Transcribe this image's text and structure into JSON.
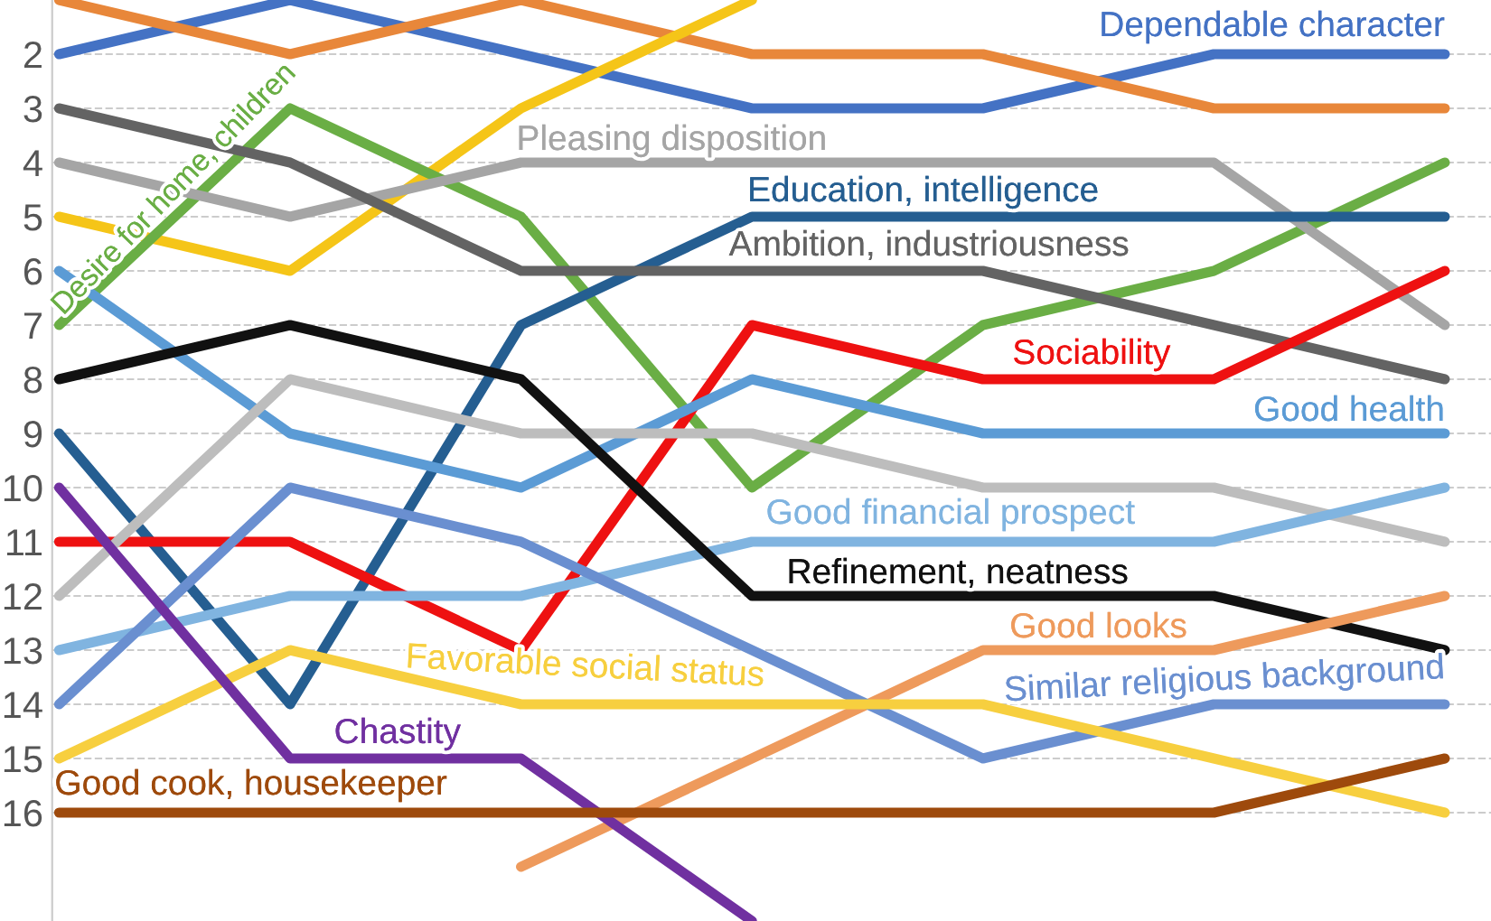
{
  "chart_data": {
    "type": "line",
    "categories": [
      null,
      null,
      null,
      null,
      null,
      null,
      null
    ],
    "ylim": [
      18,
      1
    ],
    "yticks": [
      2,
      3,
      4,
      5,
      6,
      7,
      8,
      9,
      10,
      11,
      12,
      13,
      14,
      15,
      16
    ],
    "grid": "y",
    "tick_labels": "y",
    "legend": false,
    "marker": "none",
    "line_style": "solid",
    "series": [
      {
        "name": "Dependable character",
        "color": "#4472c4",
        "values": [
          2,
          1,
          2,
          3,
          3,
          2,
          2
        ]
      },
      {
        "color": "#e8873a",
        "values": [
          1,
          2,
          1,
          2,
          2,
          3,
          3
        ]
      },
      {
        "color": "#f5c518",
        "values": [
          5,
          6,
          3,
          1,
          null,
          null,
          null
        ]
      },
      {
        "name": "Desire for home, children",
        "color": "#6aae45",
        "values": [
          7,
          3,
          5,
          10,
          7,
          6,
          4
        ]
      },
      {
        "name": "Pleasing disposition",
        "color": "#a5a5a5",
        "values": [
          4,
          5,
          4,
          4,
          4,
          4,
          7
        ]
      },
      {
        "name": "Education, intelligence",
        "color": "#255e91",
        "values": [
          9,
          14,
          7,
          5,
          5,
          5,
          5
        ]
      },
      {
        "name": "Ambition, industriousness",
        "color": "#636363",
        "values": [
          3,
          4,
          6,
          6,
          6,
          7,
          8
        ]
      },
      {
        "name": "Sociability",
        "color": "#ee1111",
        "values": [
          11,
          11,
          13,
          7,
          8,
          8,
          6
        ]
      },
      {
        "name": "Good health",
        "color": "#5b9bd5",
        "values": [
          6,
          9,
          10,
          8,
          9,
          9,
          9
        ]
      },
      {
        "color": "#bdbdbd",
        "values": [
          12,
          8,
          9,
          9,
          10,
          10,
          11
        ]
      },
      {
        "name": "Good financial prospect",
        "color": "#80b4e0",
        "values": [
          13,
          12,
          12,
          11,
          11,
          11,
          10
        ]
      },
      {
        "name": "Refinement, neatness",
        "color": "#111111",
        "values": [
          8,
          7,
          8,
          12,
          12,
          12,
          13
        ]
      },
      {
        "name": "Good looks",
        "color": "#ee9a5c",
        "values": [
          null,
          null,
          17,
          15,
          13,
          13,
          12
        ]
      },
      {
        "name": "Similar religious background",
        "color": "#6a8fd0",
        "values": [
          14,
          10,
          11,
          13,
          15,
          14,
          14
        ]
      },
      {
        "name": "Favorable social status",
        "color": "#f7cf3f",
        "values": [
          15,
          13,
          14,
          14,
          14,
          15,
          16
        ]
      },
      {
        "name": "Chastity",
        "color": "#7030a0",
        "values": [
          10,
          15,
          15,
          18,
          null,
          null,
          null
        ]
      },
      {
        "name": "Good cook, housekeeper",
        "color": "#9e4a0c",
        "values": [
          16,
          16,
          16,
          16,
          16,
          16,
          15
        ]
      }
    ]
  }
}
